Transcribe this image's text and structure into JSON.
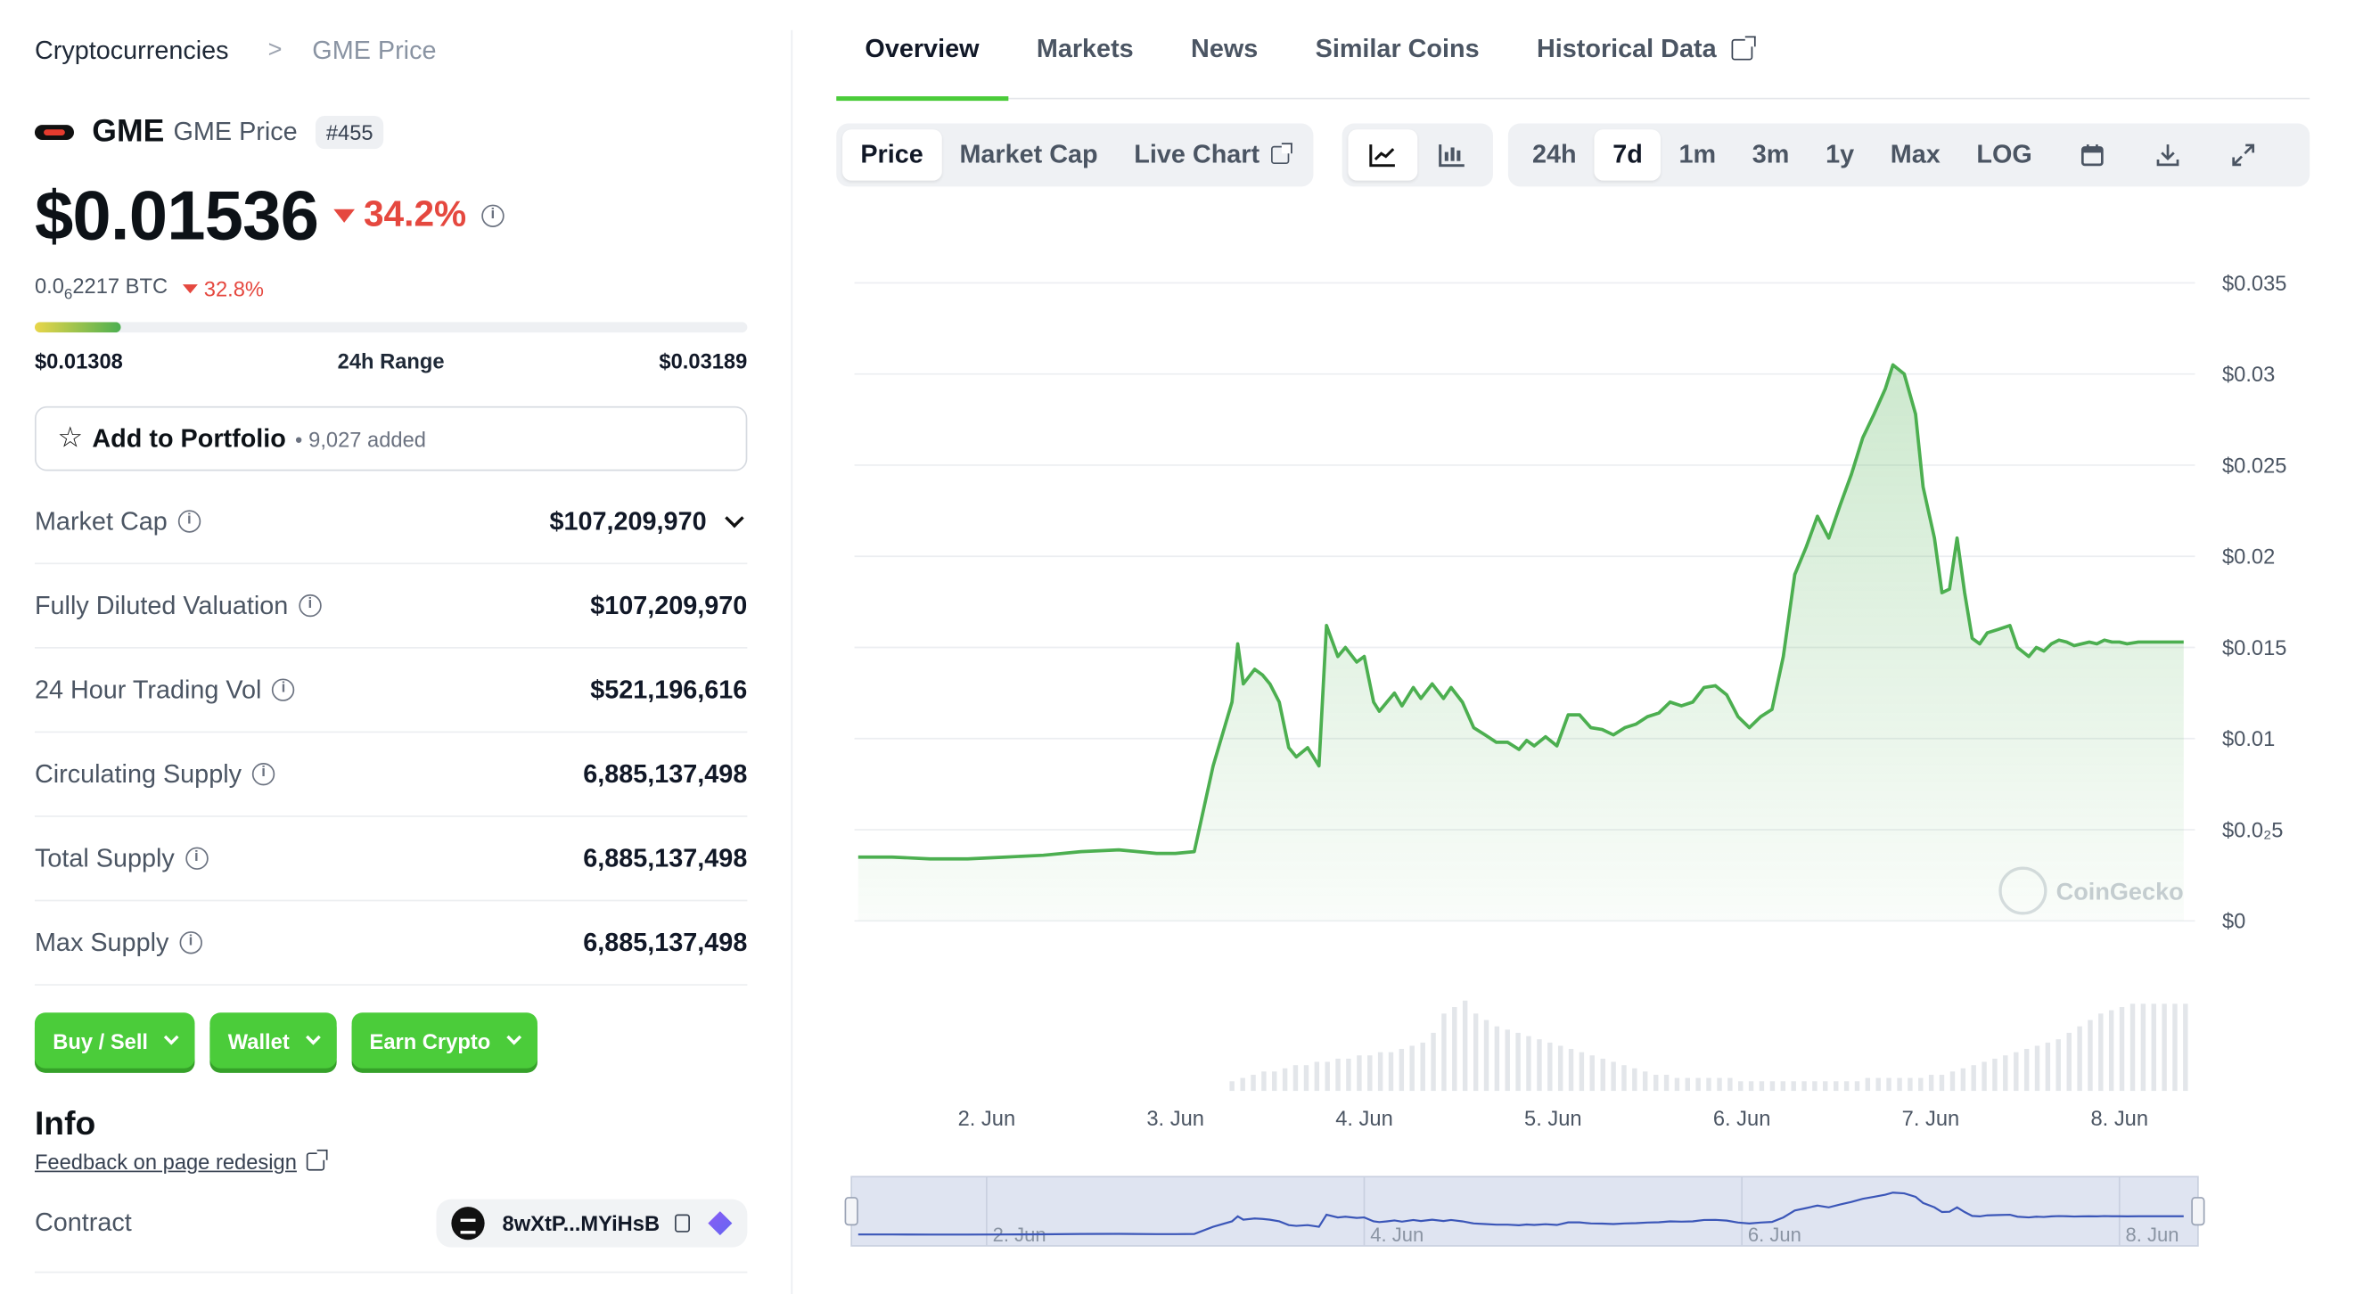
{
  "breadcrumb": {
    "root": "Cryptocurrencies",
    "separator": ">",
    "current": "GME Price"
  },
  "coin": {
    "symbol": "GME",
    "name": "GME Price",
    "rank": "#455",
    "price": "$0.01536",
    "change_24h": "34.2%",
    "btc_price_lead": "0.0",
    "btc_price_sub": "6",
    "btc_price_tail": "2217 BTC",
    "btc_change": "32.8%"
  },
  "range": {
    "low": "$0.01308",
    "label": "24h Range",
    "high": "$0.03189",
    "fill_fraction": 0.12
  },
  "portfolio": {
    "label": "Add to Portfolio",
    "separator": "•",
    "count": "9,027 added"
  },
  "stats": [
    {
      "label": "Market Cap",
      "value": "$107,209,970",
      "expandable": true
    },
    {
      "label": "Fully Diluted Valuation",
      "value": "$107,209,970"
    },
    {
      "label": "24 Hour Trading Vol",
      "value": "$521,196,616"
    },
    {
      "label": "Circulating Supply",
      "value": "6,885,137,498"
    },
    {
      "label": "Total Supply",
      "value": "6,885,137,498"
    },
    {
      "label": "Max Supply",
      "value": "6,885,137,498"
    }
  ],
  "actions": [
    {
      "label": "Buy / Sell"
    },
    {
      "label": "Wallet"
    },
    {
      "label": "Earn Crypto"
    }
  ],
  "info": {
    "title": "Info",
    "feedback": "Feedback on page redesign",
    "contract_label": "Contract",
    "contract_value": "8wXtP...MYiHsB"
  },
  "tabs": [
    {
      "label": "Overview",
      "active": true
    },
    {
      "label": "Markets"
    },
    {
      "label": "News"
    },
    {
      "label": "Similar Coins"
    },
    {
      "label": "Historical Data"
    }
  ],
  "toolbar": {
    "metrics": [
      {
        "label": "Price",
        "active": true
      },
      {
        "label": "Market Cap"
      },
      {
        "label": "Live Chart"
      }
    ],
    "views": [
      {
        "icon": "line-chart-icon",
        "active": true
      },
      {
        "icon": "candlestick-icon"
      }
    ],
    "ranges": [
      {
        "label": "24h"
      },
      {
        "label": "7d",
        "active": true
      },
      {
        "label": "1m"
      },
      {
        "label": "3m"
      },
      {
        "label": "1y"
      },
      {
        "label": "Max"
      },
      {
        "label": "LOG"
      }
    ],
    "tools": [
      "calendar-icon",
      "download-icon",
      "fullscreen-icon"
    ]
  },
  "colors": {
    "up_line": "#4caf50",
    "down": "#e5483f",
    "accent": "#4bcc3a"
  },
  "chart_data": {
    "type": "area",
    "title": "",
    "ylim": [
      0,
      0.035
    ],
    "y_ticks": [
      "$0",
      "$0.0₂5",
      "$0.01",
      "$0.015",
      "$0.02",
      "$0.025",
      "$0.03",
      "$0.035"
    ],
    "y_tick_values": [
      0,
      0.005,
      0.01,
      0.015,
      0.02,
      0.025,
      0.03,
      0.035
    ],
    "xlim": [
      1.3,
      8.4
    ],
    "x_ticks": [
      "2. Jun",
      "3. Jun",
      "4. Jun",
      "5. Jun",
      "6. Jun",
      "7. Jun",
      "8. Jun"
    ],
    "x_tick_values": [
      2,
      3,
      4,
      5,
      6,
      7,
      8
    ],
    "watermark": "CoinGecko",
    "series": [
      {
        "x": [
          1.32,
          1.5,
          1.7,
          1.9,
          2.1,
          2.3,
          2.5,
          2.7,
          2.9,
          3.0,
          3.1,
          3.2,
          3.3,
          3.33,
          3.36,
          3.42,
          3.46,
          3.5,
          3.55,
          3.6,
          3.64,
          3.7,
          3.76,
          3.8,
          3.86,
          3.9,
          3.96,
          4.0,
          4.05,
          4.08,
          4.12,
          4.16,
          4.2,
          4.26,
          4.3,
          4.36,
          4.42,
          4.46,
          4.52,
          4.58,
          4.64,
          4.7,
          4.76,
          4.82,
          4.86,
          4.9,
          4.96,
          5.02,
          5.08,
          5.14,
          5.2,
          5.26,
          5.32,
          5.38,
          5.44,
          5.5,
          5.56,
          5.62,
          5.68,
          5.74,
          5.8,
          5.86,
          5.92,
          5.98,
          6.04,
          6.1,
          6.16,
          6.22,
          6.28,
          6.34,
          6.4,
          6.46,
          6.52,
          6.58,
          6.64,
          6.7,
          6.76,
          6.8,
          6.86,
          6.92,
          6.96,
          7.02,
          7.06,
          7.1,
          7.14,
          7.18,
          7.22,
          7.26,
          7.3,
          7.36,
          7.42,
          7.46,
          7.52,
          7.56,
          7.6,
          7.64,
          7.68,
          7.72,
          7.76,
          7.8,
          7.84,
          7.88,
          7.92,
          7.96,
          8.0,
          8.04,
          8.1,
          8.16,
          8.22,
          8.28,
          8.34
        ],
        "y": [
          0.0035,
          0.0035,
          0.0034,
          0.0034,
          0.0035,
          0.0036,
          0.0038,
          0.0039,
          0.0037,
          0.0037,
          0.0038,
          0.0085,
          0.012,
          0.0152,
          0.013,
          0.0138,
          0.0135,
          0.013,
          0.012,
          0.0095,
          0.009,
          0.0095,
          0.0085,
          0.0162,
          0.0145,
          0.015,
          0.0142,
          0.0145,
          0.012,
          0.0115,
          0.012,
          0.0125,
          0.0118,
          0.0128,
          0.0122,
          0.013,
          0.0122,
          0.0128,
          0.012,
          0.0106,
          0.0102,
          0.0098,
          0.0098,
          0.0094,
          0.0099,
          0.0096,
          0.0101,
          0.0096,
          0.0113,
          0.0113,
          0.0106,
          0.0105,
          0.0102,
          0.0106,
          0.0108,
          0.0112,
          0.0114,
          0.012,
          0.0118,
          0.012,
          0.0128,
          0.0129,
          0.0124,
          0.0112,
          0.0106,
          0.0112,
          0.0116,
          0.0145,
          0.019,
          0.0205,
          0.0222,
          0.021,
          0.0228,
          0.0245,
          0.0265,
          0.0278,
          0.0292,
          0.0305,
          0.03,
          0.0278,
          0.0238,
          0.021,
          0.018,
          0.0182,
          0.021,
          0.018,
          0.0155,
          0.0152,
          0.0158,
          0.016,
          0.0162,
          0.015,
          0.0145,
          0.015,
          0.0148,
          0.0152,
          0.0154,
          0.0153,
          0.0151,
          0.0152,
          0.0153,
          0.0152,
          0.0154,
          0.0153,
          0.0153,
          0.0152,
          0.0153,
          0.0153,
          0.0153,
          0.0153,
          0.0153
        ]
      }
    ],
    "volume": {
      "x_start": 3.3,
      "x_end": 8.35,
      "values": [
        3,
        4,
        5,
        6,
        6,
        7,
        8,
        8,
        9,
        9,
        10,
        10,
        11,
        11,
        12,
        12,
        13,
        14,
        15,
        18,
        24,
        26,
        28,
        24,
        22,
        20,
        19,
        18,
        17,
        16,
        15,
        14,
        13,
        12,
        11,
        10,
        9,
        8,
        7,
        6,
        5,
        5,
        4,
        4,
        4,
        4,
        4,
        4,
        3,
        3,
        3,
        3,
        3,
        3,
        3,
        3,
        3,
        3,
        3,
        3,
        4,
        4,
        4,
        4,
        4,
        4,
        5,
        5,
        6,
        7,
        8,
        9,
        10,
        11,
        12,
        13,
        14,
        15,
        16,
        18,
        20,
        22,
        24,
        25,
        26,
        27,
        27,
        27,
        27,
        27,
        27
      ]
    },
    "navigator": {
      "x_ticks": [
        "2. Jun",
        "4. Jun",
        "6. Jun",
        "8. Jun"
      ],
      "x_tick_values": [
        2,
        4,
        6,
        8
      ]
    }
  }
}
